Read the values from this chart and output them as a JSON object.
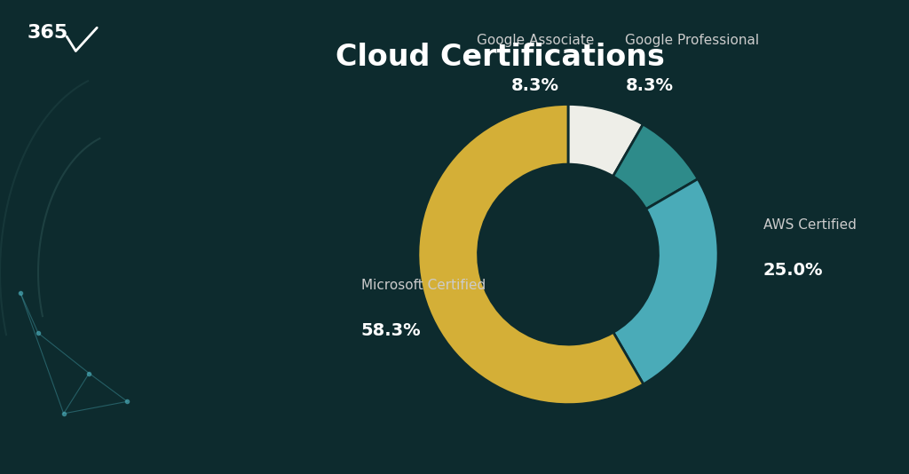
{
  "title": "Cloud Certifications",
  "slices": [
    {
      "label": "Google Associate",
      "value": 8.3,
      "color": "#EEEEE8"
    },
    {
      "label": "Google Professional",
      "value": 8.3,
      "color": "#2E8B8A"
    },
    {
      "label": "AWS Certified",
      "value": 25.0,
      "color": "#4AABB8"
    },
    {
      "label": "Microsoft Certified",
      "value": 58.3,
      "color": "#D4AF37"
    }
  ],
  "background_color": "#0D2B2E",
  "title_color": "#FFFFFF",
  "label_color": "#CCCCCC",
  "pct_color": "#FFFFFF",
  "title_fontsize": 24,
  "label_fontsize": 11,
  "pct_fontsize": 14,
  "donut_width": 0.4,
  "start_angle": 90,
  "logo_text": "365",
  "logo_fontsize": 16
}
